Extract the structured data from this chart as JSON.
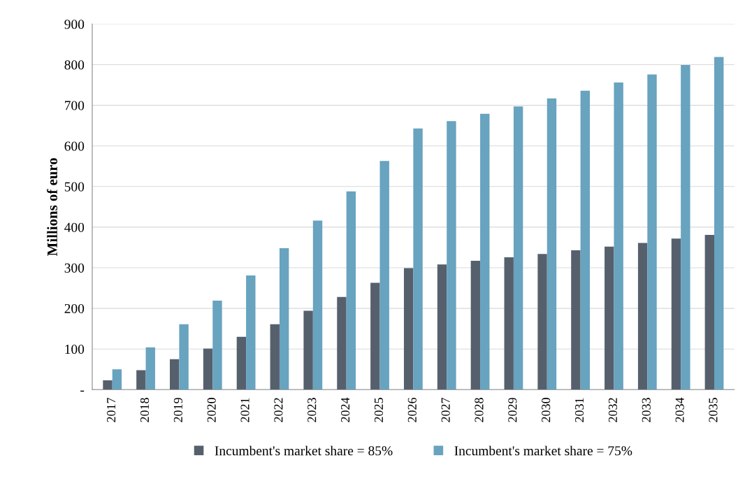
{
  "chart_data": {
    "type": "bar",
    "ylabel": "Millions of euro",
    "categories": [
      "2017",
      "2018",
      "2019",
      "2020",
      "2021",
      "2022",
      "2023",
      "2024",
      "2025",
      "2026",
      "2027",
      "2028",
      "2029",
      "2030",
      "2031",
      "2032",
      "2033",
      "2034",
      "2035"
    ],
    "series": [
      {
        "name": "Incumbent's market share = 85%",
        "color": "#56606d",
        "values": [
          23,
          48,
          75,
          101,
          130,
          161,
          194,
          228,
          263,
          299,
          308,
          317,
          326,
          334,
          343,
          352,
          361,
          372,
          381
        ]
      },
      {
        "name": "Incumbent's market share = 75%",
        "color": "#68a3bf",
        "values": [
          50,
          104,
          161,
          219,
          281,
          348,
          416,
          488,
          563,
          643,
          661,
          679,
          697,
          717,
          736,
          756,
          776,
          799,
          819
        ]
      }
    ],
    "ylim": [
      0,
      900
    ],
    "yticks": [
      {
        "value": 0,
        "label": "-"
      },
      100,
      200,
      300,
      400,
      500,
      600,
      700,
      800,
      900
    ],
    "grid": "y",
    "legend": "bottom"
  }
}
